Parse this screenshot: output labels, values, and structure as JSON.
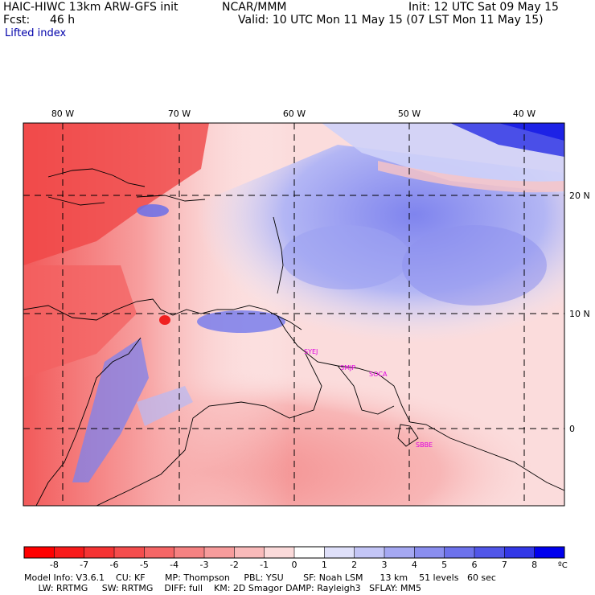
{
  "header": {
    "model_title": "HAIC-HIWC 13km ARW-GFS init",
    "org": "NCAR/MMM",
    "init": "Init: 12 UTC Sat 09 May 15",
    "fcst_label": "Fcst:",
    "fcst_value": "46 h",
    "valid": "Valid: 10 UTC Mon 11 May 15 (07 LST Mon 11 May 15)",
    "field_name": "Lifted index"
  },
  "map": {
    "lon_labels": [
      "80 W",
      "70 W",
      "60 W",
      "50 W",
      "40 W"
    ],
    "lat_labels": [
      "20 N",
      "10 N",
      "0"
    ],
    "stations": [
      "SYEJ",
      "SMJP",
      "SOCA",
      "SBBE"
    ]
  },
  "colorbar": {
    "ticks": [
      "-8",
      "-7",
      "-6",
      "-5",
      "-4",
      "-3",
      "-2",
      "-1",
      "0",
      "1",
      "2",
      "3",
      "4",
      "5",
      "6",
      "7",
      "8"
    ],
    "unit": "ºC",
    "colors": [
      "#ff0000",
      "#f81a1a",
      "#f53333",
      "#f44d4d",
      "#f56666",
      "#f58282",
      "#f79c9c",
      "#f9baba",
      "#fbdada",
      "#ffffff",
      "#dfe0fa",
      "#c3c5f6",
      "#a5a8f2",
      "#8a8eef",
      "#6d72ec",
      "#5156e9",
      "#3338e7",
      "#0000ee"
    ]
  },
  "footer": {
    "line1": "Model Info: V3.6.1    CU: KF       MP: Thompson     PBL: YSU       SF: Noah LSM      13 km    51 levels   60 sec",
    "line2": "     LW: RRTMG     SW: RRTMG    DIFF: full    KM: 2D Smagor DAMP: Rayleigh3   SFLAY: MM5"
  }
}
